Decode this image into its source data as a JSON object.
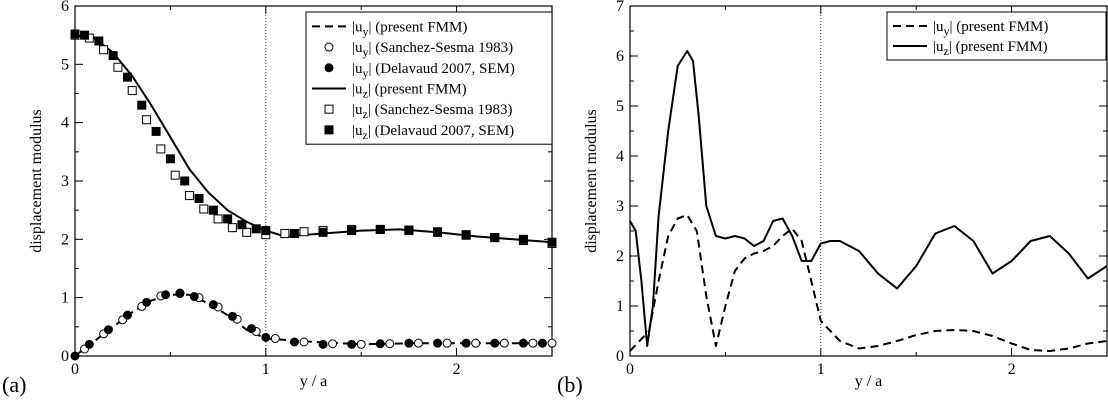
{
  "panels": [
    {
      "label": "(a)"
    },
    {
      "label": "(b)"
    }
  ],
  "chart_data": [
    {
      "type": "line",
      "xlabel": "y / a",
      "ylabel": "displacement modulus",
      "xlim": [
        0,
        2.5
      ],
      "ylim": [
        0,
        6
      ],
      "xticks": [
        0,
        1,
        2
      ],
      "yticks": [
        0,
        1,
        2,
        3,
        4,
        5,
        6
      ],
      "vline": 1,
      "legend_position": "top-right",
      "series": [
        {
          "name": "|u_y| (present FMM)",
          "style": "dashed",
          "x": [
            0,
            0.1,
            0.2,
            0.3,
            0.4,
            0.5,
            0.6,
            0.7,
            0.8,
            0.9,
            1.0,
            1.2,
            1.5,
            1.8,
            2.0,
            2.2,
            2.5
          ],
          "y": [
            0,
            0.25,
            0.5,
            0.75,
            0.95,
            1.05,
            1.05,
            0.9,
            0.7,
            0.45,
            0.3,
            0.25,
            0.2,
            0.22,
            0.22,
            0.22,
            0.22
          ]
        },
        {
          "name": "|u_y| (Sanchez-Sesma 1983)",
          "style": "open-circle",
          "x": [
            0.05,
            0.15,
            0.25,
            0.35,
            0.45,
            0.55,
            0.65,
            0.75,
            0.85,
            0.95,
            1.05,
            1.2,
            1.35,
            1.5,
            1.65,
            1.8,
            1.95,
            2.1,
            2.25,
            2.4,
            2.5
          ],
          "y": [
            0.12,
            0.38,
            0.62,
            0.85,
            1.03,
            1.08,
            1.0,
            0.84,
            0.63,
            0.42,
            0.3,
            0.24,
            0.21,
            0.2,
            0.21,
            0.22,
            0.22,
            0.22,
            0.22,
            0.22,
            0.22
          ]
        },
        {
          "name": "|u_y| (Delavaud 2007, SEM)",
          "style": "filled-circle",
          "x": [
            0,
            0.075,
            0.175,
            0.275,
            0.375,
            0.475,
            0.55,
            0.625,
            0.725,
            0.825,
            0.925,
            1.0,
            1.15,
            1.3,
            1.45,
            1.6,
            1.75,
            1.9,
            2.05,
            2.2,
            2.35,
            2.45
          ],
          "y": [
            0,
            0.2,
            0.45,
            0.7,
            0.92,
            1.05,
            1.07,
            1.02,
            0.88,
            0.68,
            0.47,
            0.32,
            0.24,
            0.2,
            0.2,
            0.21,
            0.22,
            0.22,
            0.22,
            0.22,
            0.22,
            0.22
          ]
        },
        {
          "name": "|u_z| (present FMM)",
          "style": "solid",
          "x": [
            0,
            0.1,
            0.2,
            0.3,
            0.4,
            0.5,
            0.6,
            0.7,
            0.8,
            0.9,
            1.0,
            1.1,
            1.3,
            1.5,
            1.7,
            1.9,
            2.1,
            2.3,
            2.5
          ],
          "y": [
            5.5,
            5.45,
            5.2,
            4.8,
            4.3,
            3.75,
            3.2,
            2.8,
            2.5,
            2.3,
            2.15,
            2.05,
            2.1,
            2.15,
            2.17,
            2.12,
            2.05,
            2.0,
            1.95
          ]
        },
        {
          "name": "|u_z| (Sanchez-Sesma 1983)",
          "style": "open-square",
          "x": [
            0,
            0.075,
            0.15,
            0.225,
            0.3,
            0.375,
            0.45,
            0.525,
            0.6,
            0.675,
            0.75,
            0.825,
            0.9,
            1.0,
            1.1,
            1.2,
            1.3,
            1.45,
            1.6,
            1.75,
            1.9,
            2.05,
            2.2,
            2.35,
            2.5
          ],
          "y": [
            5.5,
            5.45,
            5.25,
            4.95,
            4.55,
            4.05,
            3.55,
            3.1,
            2.75,
            2.52,
            2.35,
            2.2,
            2.12,
            2.08,
            2.1,
            2.13,
            2.15,
            2.17,
            2.17,
            2.15,
            2.12,
            2.07,
            2.03,
            1.98,
            1.93
          ]
        },
        {
          "name": "|u_z| (Delavaud 2007, SEM)",
          "style": "filled-square",
          "x": [
            0,
            0.05,
            0.125,
            0.2,
            0.275,
            0.35,
            0.425,
            0.5,
            0.575,
            0.65,
            0.725,
            0.8,
            0.875,
            0.95,
            1.0,
            1.15,
            1.3,
            1.45,
            1.6,
            1.75,
            1.9,
            2.05,
            2.2,
            2.35,
            2.5
          ],
          "y": [
            5.52,
            5.5,
            5.4,
            5.15,
            4.78,
            4.3,
            3.85,
            3.38,
            3.0,
            2.7,
            2.5,
            2.35,
            2.25,
            2.18,
            2.15,
            2.1,
            2.12,
            2.15,
            2.17,
            2.16,
            2.13,
            2.08,
            2.03,
            2.0,
            1.95
          ]
        }
      ]
    },
    {
      "type": "line",
      "xlabel": "y / a",
      "ylabel": "displacement modulus",
      "xlim": [
        0,
        2.5
      ],
      "ylim": [
        0,
        7
      ],
      "xticks": [
        0,
        1,
        2
      ],
      "yticks": [
        0,
        1,
        2,
        3,
        4,
        5,
        6,
        7
      ],
      "vline": 1,
      "legend_position": "top-right",
      "series": [
        {
          "name": "|u_y|  (present FMM)",
          "style": "dashed",
          "x": [
            0,
            0.05,
            0.1,
            0.15,
            0.2,
            0.25,
            0.3,
            0.35,
            0.4,
            0.45,
            0.5,
            0.55,
            0.6,
            0.65,
            0.7,
            0.75,
            0.8,
            0.85,
            0.9,
            0.95,
            1.0,
            1.1,
            1.2,
            1.3,
            1.4,
            1.5,
            1.6,
            1.7,
            1.8,
            1.9,
            2.0,
            2.1,
            2.2,
            2.3,
            2.4,
            2.5
          ],
          "y": [
            0.1,
            0.3,
            0.5,
            1.5,
            2.4,
            2.75,
            2.82,
            2.5,
            1.2,
            0.2,
            1.0,
            1.7,
            1.95,
            2.05,
            2.1,
            2.2,
            2.4,
            2.55,
            2.3,
            1.5,
            0.7,
            0.3,
            0.15,
            0.2,
            0.3,
            0.42,
            0.5,
            0.52,
            0.5,
            0.4,
            0.25,
            0.12,
            0.1,
            0.15,
            0.25,
            0.3
          ]
        },
        {
          "name": "|u_z|  (present FMM)",
          "style": "solid",
          "x": [
            0,
            0.03,
            0.06,
            0.09,
            0.12,
            0.15,
            0.2,
            0.25,
            0.3,
            0.33,
            0.36,
            0.4,
            0.45,
            0.5,
            0.55,
            0.6,
            0.65,
            0.7,
            0.75,
            0.8,
            0.85,
            0.9,
            0.95,
            1.0,
            1.05,
            1.1,
            1.2,
            1.3,
            1.4,
            1.5,
            1.6,
            1.7,
            1.8,
            1.9,
            2.0,
            2.1,
            2.2,
            2.3,
            2.4,
            2.5
          ],
          "y": [
            2.7,
            2.5,
            1.5,
            0.2,
            1.0,
            2.8,
            4.5,
            5.8,
            6.1,
            5.9,
            4.8,
            3.0,
            2.4,
            2.35,
            2.4,
            2.35,
            2.2,
            2.3,
            2.7,
            2.75,
            2.4,
            1.9,
            1.9,
            2.25,
            2.3,
            2.3,
            2.1,
            1.65,
            1.35,
            1.8,
            2.45,
            2.6,
            2.3,
            1.65,
            1.9,
            2.3,
            2.4,
            2.05,
            1.55,
            1.8
          ]
        }
      ]
    }
  ]
}
